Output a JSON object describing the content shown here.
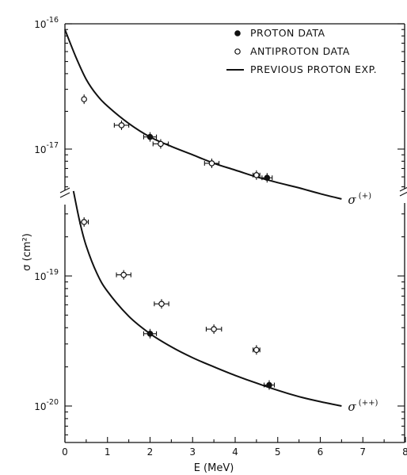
{
  "chart_data": {
    "type": "scatter",
    "title": "",
    "xlabel": "E (MeV)",
    "ylabel": "σ (cm²)",
    "x_ticks": [
      "0",
      "1",
      "2",
      "3",
      "4",
      "5",
      "6",
      "7",
      "8"
    ],
    "xlim": [
      0,
      8
    ],
    "y_scale": "log",
    "y_axis_broken": true,
    "upper_panel": {
      "ylim": [
        3e-18,
        1e-16
      ],
      "y_ticks": [
        {
          "value": 1e-16,
          "base": "10",
          "exp": "-16"
        },
        {
          "value": 1e-17,
          "base": "10",
          "exp": "-17"
        }
      ]
    },
    "lower_panel": {
      "ylim": [
        5e-21,
        5e-19
      ],
      "y_ticks": [
        {
          "value": 1e-19,
          "base": "10",
          "exp": "-19"
        },
        {
          "value": 1e-20,
          "base": "10",
          "exp": "-20"
        }
      ]
    },
    "legend": {
      "position": "top-right",
      "entries": [
        {
          "marker": "filled-circle",
          "label": "PROTON DATA"
        },
        {
          "marker": "open-circle",
          "label": "ANTIPROTON DATA"
        },
        {
          "marker": "line",
          "label": "PREVIOUS PROTON EXP."
        }
      ]
    },
    "series": [
      {
        "kind": "curve",
        "panel": "upper",
        "label": {
          "symbol": "σ",
          "sup": "(+)"
        },
        "x": [
          0,
          0.25,
          0.5,
          0.75,
          1.0,
          1.5,
          2.0,
          2.5,
          3.0,
          3.5,
          4.0,
          4.5,
          5.0,
          5.5,
          6.0,
          6.5
        ],
        "y": [
          9e-17,
          5.5e-17,
          3.6e-17,
          2.7e-17,
          2.2e-17,
          1.6e-17,
          1.25e-17,
          1.05e-17,
          9e-18,
          7.7e-18,
          6.8e-18,
          6e-18,
          5.4e-18,
          4.9e-18,
          4.4e-18,
          4e-18
        ]
      },
      {
        "kind": "curve",
        "panel": "lower",
        "label": {
          "symbol": "σ",
          "sup": "(++)"
        },
        "x": [
          0.2,
          0.35,
          0.5,
          0.75,
          1.0,
          1.5,
          2.0,
          2.5,
          3.0,
          3.5,
          4.0,
          4.5,
          5.0,
          5.5,
          6.0,
          6.5
        ],
        "y": [
          4.5e-19,
          2.6e-19,
          1.7e-19,
          1.05e-19,
          7.6e-20,
          4.9e-20,
          3.6e-20,
          2.85e-20,
          2.35e-20,
          2e-20,
          1.72e-20,
          1.5e-20,
          1.32e-20,
          1.18e-20,
          1.08e-20,
          1e-20
        ]
      },
      {
        "kind": "points",
        "marker": "filled-circle",
        "panel": "upper",
        "points": [
          {
            "x": 2.0,
            "y": 1.25e-17,
            "xerr": 0.15
          },
          {
            "x": 4.75,
            "y": 5.9e-18,
            "xerr": 0.12
          }
        ]
      },
      {
        "kind": "points",
        "marker": "open-circle",
        "panel": "upper",
        "points": [
          {
            "x": 0.45,
            "y": 2.5e-17,
            "xerr": 0.0
          },
          {
            "x": 1.33,
            "y": 1.55e-17,
            "xerr": 0.17
          },
          {
            "x": 2.25,
            "y": 1.1e-17,
            "xerr": 0.18
          },
          {
            "x": 3.45,
            "y": 7.7e-18,
            "xerr": 0.17
          },
          {
            "x": 4.5,
            "y": 6.2e-18,
            "xerr": 0.08
          }
        ]
      },
      {
        "kind": "points",
        "marker": "filled-circle",
        "panel": "lower",
        "points": [
          {
            "x": 2.0,
            "y": 3.6e-20,
            "xerr": 0.15
          },
          {
            "x": 4.8,
            "y": 1.45e-20,
            "xerr": 0.12
          }
        ]
      },
      {
        "kind": "points",
        "marker": "open-circle",
        "panel": "lower",
        "points": [
          {
            "x": 0.45,
            "y": 2.6e-19,
            "xerr": 0.1
          },
          {
            "x": 1.38,
            "y": 1.02e-19,
            "xerr": 0.17
          },
          {
            "x": 2.27,
            "y": 6.1e-20,
            "xerr": 0.17
          },
          {
            "x": 3.5,
            "y": 3.9e-20,
            "xerr": 0.18
          },
          {
            "x": 4.5,
            "y": 2.7e-20,
            "xerr": 0.08
          }
        ]
      }
    ]
  }
}
